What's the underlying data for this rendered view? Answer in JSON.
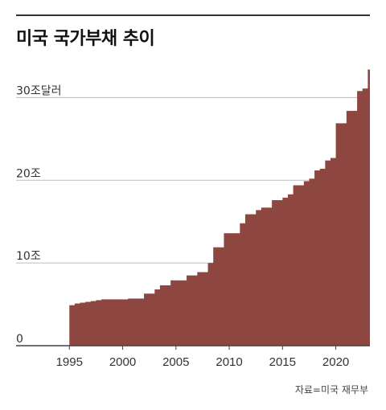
{
  "title": "미국 국가부채 추이",
  "source": "자료=미국 재무부",
  "colors": {
    "area": "#8e4641",
    "grid": "#bdbdbd",
    "axis": "#444444",
    "title_rule": "#333333"
  },
  "chart_data": {
    "type": "area",
    "title": "미국 국가부채 추이",
    "xlabel": "",
    "ylabel": "",
    "unit_note": "조달러",
    "xlim": [
      1990,
      2023.2
    ],
    "ylim": [
      0,
      35
    ],
    "grid": true,
    "y_ticks": [
      {
        "value": 0,
        "label": "0"
      },
      {
        "value": 10,
        "label": "10조"
      },
      {
        "value": 20,
        "label": "20조"
      },
      {
        "value": 30,
        "label": "30조달러"
      }
    ],
    "x_ticks": [
      {
        "value": 1995,
        "label": "1995"
      },
      {
        "value": 2000,
        "label": "2000"
      },
      {
        "value": 2005,
        "label": "2005"
      },
      {
        "value": 2010,
        "label": "2010"
      },
      {
        "value": 2015,
        "label": "2015"
      },
      {
        "value": 2020,
        "label": "2020"
      }
    ],
    "x": [
      1995.0,
      1995.5,
      1996.0,
      1996.5,
      1997.0,
      1997.5,
      1998.0,
      1998.5,
      1999.0,
      1999.5,
      2000.0,
      2000.5,
      2001.0,
      2001.5,
      2002.0,
      2002.5,
      2003.0,
      2003.5,
      2004.0,
      2004.5,
      2005.0,
      2005.5,
      2006.0,
      2006.5,
      2007.0,
      2007.5,
      2008.0,
      2008.5,
      2009.0,
      2009.5,
      2010.0,
      2010.5,
      2011.0,
      2011.5,
      2012.0,
      2012.5,
      2013.0,
      2013.5,
      2014.0,
      2014.5,
      2015.0,
      2015.5,
      2016.0,
      2016.5,
      2017.0,
      2017.5,
      2018.0,
      2018.5,
      2019.0,
      2019.5,
      2020.0,
      2020.5,
      2021.0,
      2021.5,
      2022.0,
      2022.5,
      2023.0
    ],
    "values": [
      4.9,
      5.1,
      5.2,
      5.3,
      5.4,
      5.5,
      5.6,
      5.6,
      5.6,
      5.6,
      5.6,
      5.7,
      5.7,
      5.7,
      6.3,
      6.3,
      6.8,
      7.3,
      7.3,
      7.9,
      7.9,
      7.9,
      8.5,
      8.5,
      8.9,
      8.9,
      10.0,
      11.9,
      11.9,
      13.6,
      13.6,
      13.6,
      14.8,
      15.9,
      15.9,
      16.4,
      16.7,
      16.7,
      17.6,
      17.6,
      17.9,
      18.3,
      19.4,
      19.4,
      19.9,
      20.2,
      21.2,
      21.4,
      22.4,
      22.7,
      26.9,
      26.9,
      28.4,
      28.4,
      30.8,
      31.1,
      33.4
    ]
  }
}
